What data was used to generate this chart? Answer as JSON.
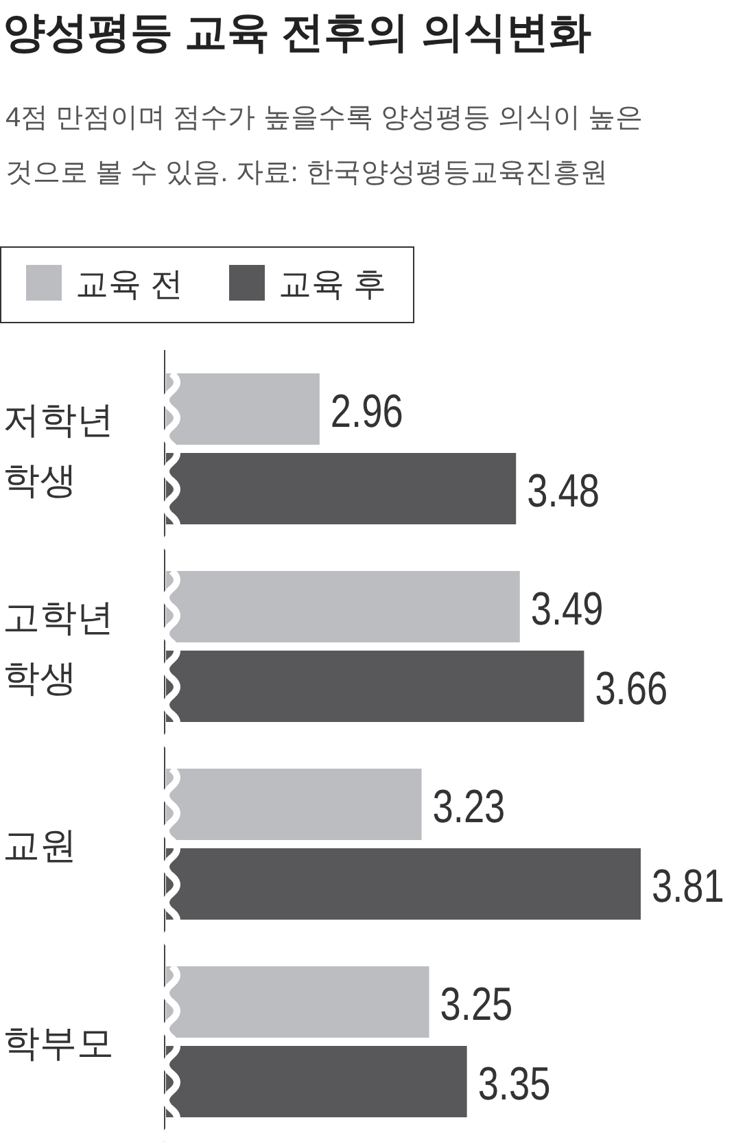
{
  "chart_data": {
    "type": "bar",
    "orientation": "horizontal",
    "title": "양성평등 교육 전후의 의식변화",
    "subtitle": "4점 만점이며 점수가 높을수록 양성평등 의식이 높은 것으로 볼 수 있음. 자료: 한국양성평등교육진흥원",
    "categories": [
      "저학년 학생",
      "고학년 학생",
      "교원",
      "학부모"
    ],
    "series": [
      {
        "name": "교육 전",
        "color": "#bcbdc0",
        "values": [
          2.96,
          3.49,
          3.23,
          3.25
        ]
      },
      {
        "name": "교육 후",
        "color": "#58585a",
        "values": [
          3.48,
          3.66,
          3.81,
          3.35
        ]
      }
    ],
    "xlim": [
      2.55,
      3.81
    ],
    "data_labels": true,
    "legend": "top left"
  }
}
